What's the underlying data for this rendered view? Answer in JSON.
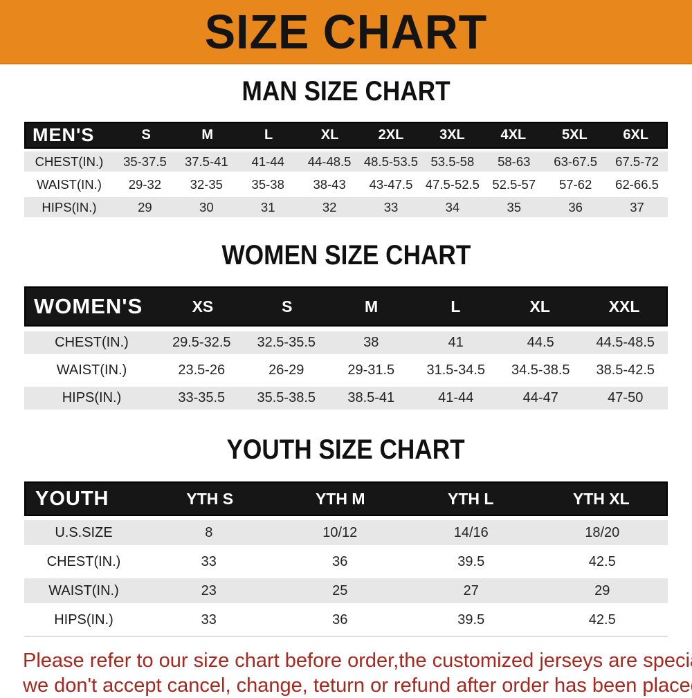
{
  "banner": {
    "title": "SIZE CHART"
  },
  "theme": {
    "banner_bg": "#E8871C",
    "header_bg": "#161616",
    "stripe": "#E7E7E7",
    "disclaimer_color": "#A6281F"
  },
  "sections": [
    {
      "id": "men",
      "heading": "MAN SIZE CHART",
      "header_label": "MEN'S",
      "columns": [
        "S",
        "M",
        "L",
        "XL",
        "2XL",
        "3XL",
        "4XL",
        "5XL",
        "6XL"
      ],
      "rows": [
        {
          "label": "CHEST(IN.)",
          "values": [
            "35-37.5",
            "37.5-41",
            "41-44",
            "44-48.5",
            "48.5-53.5",
            "53.5-58",
            "58-63",
            "63-67.5",
            "67.5-72"
          ]
        },
        {
          "label": "WAIST(IN.)",
          "values": [
            "29-32",
            "32-35",
            "35-38",
            "38-43",
            "43-47.5",
            "47.5-52.5",
            "52.5-57",
            "57-62",
            "62-66.5"
          ]
        },
        {
          "label": "HIPS(IN.)",
          "values": [
            "29",
            "30",
            "31",
            "32",
            "33",
            "34",
            "35",
            "36",
            "37"
          ]
        }
      ]
    },
    {
      "id": "women",
      "heading": "WOMEN SIZE CHART",
      "header_label": "WOMEN'S",
      "columns": [
        "XS",
        "S",
        "M",
        "L",
        "XL",
        "XXL"
      ],
      "rows": [
        {
          "label": "CHEST(IN.)",
          "values": [
            "29.5-32.5",
            "32.5-35.5",
            "38",
            "41",
            "44.5",
            "44.5-48.5"
          ]
        },
        {
          "label": "WAIST(IN.)",
          "values": [
            "23.5-26",
            "26-29",
            "29-31.5",
            "31.5-34.5",
            "34.5-38.5",
            "38.5-42.5"
          ]
        },
        {
          "label": "HIPS(IN.)",
          "values": [
            "33-35.5",
            "35.5-38.5",
            "38.5-41",
            "41-44",
            "44-47",
            "47-50"
          ]
        }
      ]
    },
    {
      "id": "youth",
      "heading": "YOUTH SIZE CHART",
      "header_label": "YOUTH",
      "columns": [
        "YTH S",
        "YTH M",
        "YTH L",
        "YTH XL"
      ],
      "rows": [
        {
          "label": "U.S.SIZE",
          "values": [
            "8",
            "10/12",
            "14/16",
            "18/20"
          ]
        },
        {
          "label": "CHEST(IN.)",
          "values": [
            "33",
            "36",
            "39.5",
            "42.5"
          ]
        },
        {
          "label": "WAIST(IN.)",
          "values": [
            "23",
            "25",
            "27",
            "29"
          ]
        },
        {
          "label": "HIPS(IN.)",
          "values": [
            "33",
            "36",
            "39.5",
            "42.5"
          ]
        }
      ]
    }
  ],
  "disclaimer": {
    "line1": "Please refer to our size chart before order,the customized jerseys are special products,",
    "line2": "we don't accept cancel, change, teturn or refund after order has been placed!"
  }
}
